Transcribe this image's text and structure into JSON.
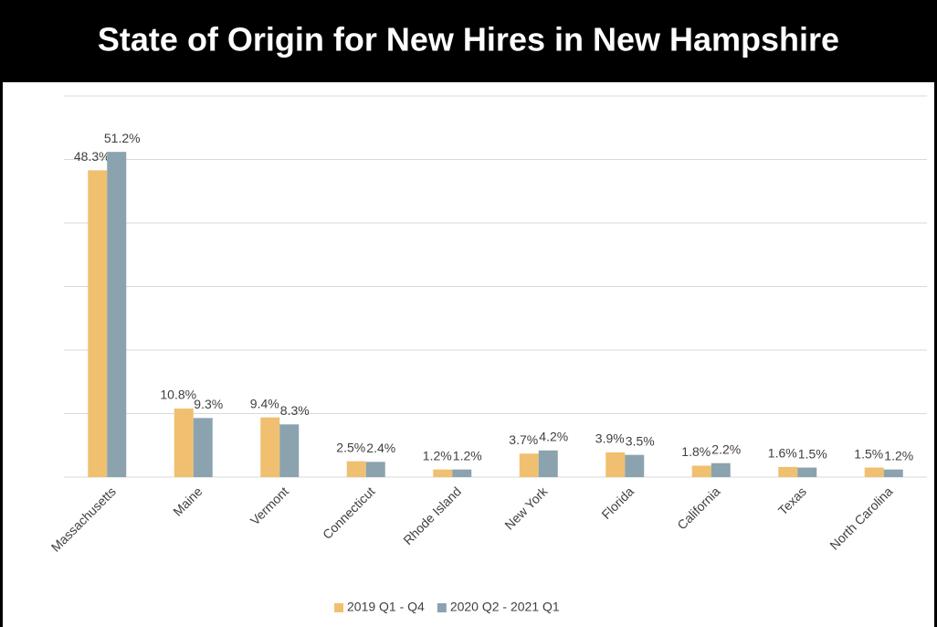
{
  "chart_data": {
    "type": "bar",
    "title": "State of Origin for New Hires in New Hampshire",
    "categories": [
      "Massachusetts",
      "Maine",
      "Vermont",
      "Connecticut",
      "Rhode Island",
      "New York",
      "Florida",
      "California",
      "Texas",
      "North Carolina"
    ],
    "series": [
      {
        "name": "2019 Q1 - Q4",
        "color": "#f0c070",
        "values": [
          48.3,
          10.8,
          9.4,
          2.5,
          1.2,
          3.7,
          3.9,
          1.8,
          1.6,
          1.5
        ],
        "value_labels": [
          "48.3%",
          "10.8%",
          "9.4%",
          "2.5%",
          "1.2%",
          "3.7%",
          "3.9%",
          "1.8%",
          "1.6%",
          "1.5%"
        ]
      },
      {
        "name": "2020 Q2 - 2021 Q1",
        "color": "#8ba3ae",
        "values": [
          51.2,
          9.3,
          8.3,
          2.4,
          1.2,
          4.2,
          3.5,
          2.2,
          1.5,
          1.2
        ],
        "value_labels": [
          "51.2%",
          "9.3%",
          "8.3%",
          "2.4%",
          "1.2%",
          "4.2%",
          "3.5%",
          "2.2%",
          "1.5%",
          "1.2%"
        ]
      }
    ],
    "ylim": [
      0,
      60
    ],
    "yticks": [
      0,
      10,
      20,
      30,
      40,
      50,
      60
    ],
    "grid": true,
    "legend": "bottom"
  }
}
